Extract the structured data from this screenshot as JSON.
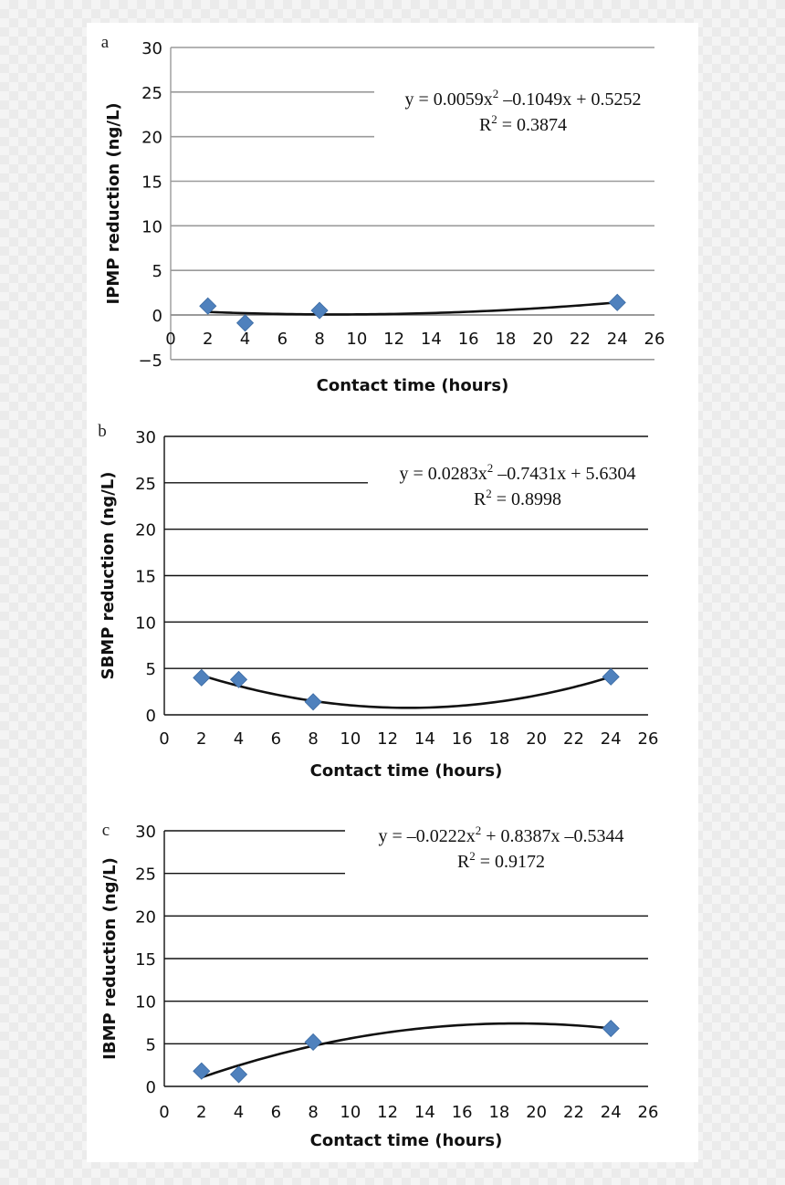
{
  "chart_data": [
    {
      "type": "scatter",
      "panel": "a",
      "xlabel": "Contact time (hours)",
      "ylabel": "IPMP reduction (ng/L)",
      "xlim": [
        0,
        26
      ],
      "ylim": [
        -5,
        30
      ],
      "xticks": [
        "0",
        "2",
        "4",
        "6",
        "8",
        "10",
        "12",
        "14",
        "16",
        "18",
        "20",
        "22",
        "24",
        "26"
      ],
      "yticks": [
        "−5",
        "0",
        "5",
        "10",
        "15",
        "20",
        "25",
        "30"
      ],
      "grid": "horizontal",
      "points": [
        {
          "x": 2,
          "y": 1.0
        },
        {
          "x": 4,
          "y": -0.9
        },
        {
          "x": 8,
          "y": 0.5
        },
        {
          "x": 24,
          "y": 1.4
        }
      ],
      "trendline": {
        "type": "polynomial",
        "a": 0.0059,
        "b": -0.1049,
        "c": 0.5252,
        "x_range": [
          2,
          24
        ]
      },
      "equation": {
        "text": "y = 0.0059x",
        "exp": "2",
        "rest": " –0.1049x + 0.5252",
        "r2_prefix": "R",
        "r2_exp": "2",
        "r2_value": " = 0.3874"
      },
      "marker_color": "#4f81bd"
    },
    {
      "type": "scatter",
      "panel": "b",
      "xlabel": "Contact time (hours)",
      "ylabel": "SBMP reduction (ng/L)",
      "xlim": [
        0,
        26
      ],
      "ylim": [
        0,
        30
      ],
      "xticks": [
        "0",
        "2",
        "4",
        "6",
        "8",
        "10",
        "12",
        "14",
        "16",
        "18",
        "20",
        "22",
        "24",
        "26"
      ],
      "yticks": [
        "0",
        "5",
        "10",
        "15",
        "20",
        "25",
        "30"
      ],
      "grid": "horizontal",
      "points": [
        {
          "x": 2,
          "y": 4.0
        },
        {
          "x": 4,
          "y": 3.8
        },
        {
          "x": 8,
          "y": 1.4
        },
        {
          "x": 24,
          "y": 4.1
        }
      ],
      "trendline": {
        "type": "polynomial",
        "a": 0.0283,
        "b": -0.7431,
        "c": 5.6304,
        "x_range": [
          2,
          24
        ]
      },
      "equation": {
        "text": "y = 0.0283x",
        "exp": "2",
        "rest": " –0.7431x + 5.6304",
        "r2_prefix": "R",
        "r2_exp": "2",
        "r2_value": " = 0.8998"
      },
      "marker_color": "#4f81bd"
    },
    {
      "type": "scatter",
      "panel": "c",
      "xlabel": "Contact time (hours)",
      "ylabel": "IBMP reduction (ng/L)",
      "xlim": [
        0,
        26
      ],
      "ylim": [
        0,
        30
      ],
      "xticks": [
        "0",
        "2",
        "4",
        "6",
        "8",
        "10",
        "12",
        "14",
        "16",
        "18",
        "20",
        "22",
        "24",
        "26"
      ],
      "yticks": [
        "0",
        "5",
        "10",
        "15",
        "20",
        "25",
        "30"
      ],
      "grid": "horizontal",
      "points": [
        {
          "x": 2,
          "y": 1.8
        },
        {
          "x": 4,
          "y": 1.4
        },
        {
          "x": 8,
          "y": 5.2
        },
        {
          "x": 24,
          "y": 6.8
        }
      ],
      "trendline": {
        "type": "polynomial",
        "a": -0.0222,
        "b": 0.8387,
        "c": -0.5344,
        "x_range": [
          2,
          24
        ]
      },
      "equation": {
        "text": "y = –0.0222x",
        "exp": "2",
        "rest": " + 0.8387x –0.5344",
        "r2_prefix": "R",
        "r2_exp": "2",
        "r2_value": " = 0.9172"
      },
      "marker_color": "#4f81bd"
    }
  ]
}
